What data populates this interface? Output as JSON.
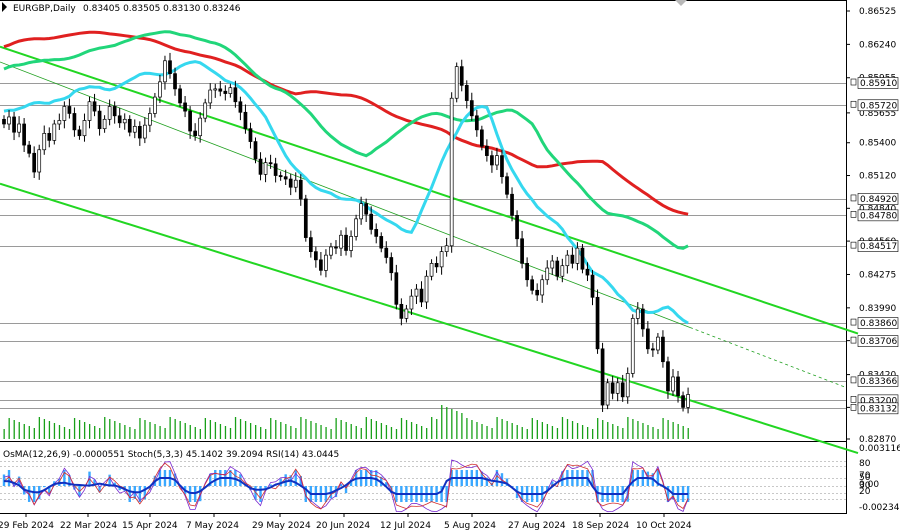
{
  "chart_data": {
    "type": "candlestick",
    "symbol": "EURGBP,Daily",
    "ohlc_header": "0.83405 0.83505 0.83130 0.83246",
    "price_ticks": [
      "0.86525",
      "0.86240",
      "0.85955",
      "0.85655",
      "0.85400",
      "0.85120",
      "0.84840",
      "0.84560",
      "0.84275",
      "0.83990",
      "0.83710",
      "0.83420",
      "0.83140",
      "0.82870"
    ],
    "level_labels": [
      {
        "text": "0.85910",
        "price": 0.8591
      },
      {
        "text": "0.85720",
        "price": 0.8572
      },
      {
        "text": "0.84920",
        "price": 0.8492
      },
      {
        "text": "0.84780",
        "price": 0.8478
      },
      {
        "text": "0.84517",
        "price": 0.84517
      },
      {
        "text": "0.83860",
        "price": 0.8386
      },
      {
        "text": "0.83706",
        "price": 0.83706
      },
      {
        "text": "0.83366",
        "price": 0.83366
      },
      {
        "text": "0.83200",
        "price": 0.832
      },
      {
        "text": "0.83132",
        "price": 0.83132
      }
    ],
    "date_ticks": [
      "29 Feb 2024",
      "22 Mar 2024",
      "15 Apr 2024",
      "7 May 2024",
      "29 May 2024",
      "20 Jun 2024",
      "12 Jul 2024",
      "5 Aug 2024",
      "27 Aug 2024",
      "18 Sep 2024",
      "10 Oct 2024"
    ],
    "closes": [
      0.8556,
      0.8562,
      0.8549,
      0.8556,
      0.8538,
      0.8531,
      0.8515,
      0.8534,
      0.8548,
      0.8542,
      0.8556,
      0.8559,
      0.8571,
      0.8565,
      0.8551,
      0.8546,
      0.8559,
      0.8575,
      0.8567,
      0.8552,
      0.856,
      0.8571,
      0.8563,
      0.8557,
      0.856,
      0.8549,
      0.8554,
      0.8544,
      0.8555,
      0.8565,
      0.8579,
      0.8592,
      0.861,
      0.8599,
      0.8586,
      0.8574,
      0.8567,
      0.855,
      0.8546,
      0.8561,
      0.8574,
      0.8585,
      0.8586,
      0.8584,
      0.8582,
      0.8587,
      0.8575,
      0.8566,
      0.8552,
      0.8541,
      0.8526,
      0.8513,
      0.8523,
      0.8522,
      0.8512,
      0.8511,
      0.8509,
      0.8502,
      0.8508,
      0.8492,
      0.8459,
      0.8447,
      0.844,
      0.8431,
      0.8444,
      0.8451,
      0.845,
      0.8461,
      0.8448,
      0.846,
      0.8475,
      0.8488,
      0.8479,
      0.8466,
      0.846,
      0.845,
      0.8442,
      0.8429,
      0.8402,
      0.839,
      0.8398,
      0.8409,
      0.8415,
      0.8404,
      0.8426,
      0.8437,
      0.8434,
      0.8447,
      0.8452,
      0.8578,
      0.8605,
      0.8589,
      0.8576,
      0.8563,
      0.8551,
      0.8537,
      0.8529,
      0.8521,
      0.8529,
      0.8511,
      0.8496,
      0.8478,
      0.8458,
      0.8437,
      0.8423,
      0.8414,
      0.841,
      0.8423,
      0.8433,
      0.8439,
      0.8426,
      0.8435,
      0.8444,
      0.8437,
      0.845,
      0.8432,
      0.8427,
      0.8408,
      0.8364,
      0.8316,
      0.8335,
      0.8326,
      0.8335,
      0.8323,
      0.8343,
      0.839,
      0.8398,
      0.8381,
      0.8364,
      0.8363,
      0.8374,
      0.8353,
      0.8328,
      0.834,
      0.8324,
      0.8314,
      0.8325
    ],
    "moving_averages": [
      {
        "color": "#e02020",
        "start": [
          0,
          0.8622
        ],
        "end": [
          134,
          0.8479
        ]
      },
      {
        "color": "#21d67a",
        "start": [
          0,
          0.8603
        ],
        "end": [
          134,
          0.8452
        ]
      },
      {
        "color": "#35d8ef",
        "start": [
          0,
          0.8567
        ],
        "end": [
          134,
          0.8386
        ]
      }
    ],
    "channel_lines": [
      {
        "color": "#22d622",
        "start_price": 0.8622,
        "end_price": 0.8377
      },
      {
        "color": "#22d622",
        "start_price": 0.8505,
        "end_price": 0.8275
      },
      {
        "color": "#20a020",
        "start_price": 0.8609,
        "end_price": 0.8331,
        "dashed_tail": true
      }
    ],
    "indicator_header": "OsMA(12,26,9) -0.0000551  Stoch(5,3,3) 45.1402 39.2094  RSI(14) 43.0445",
    "indicator_ticks": [
      "0.0031162",
      "80",
      "70",
      "50",
      "30",
      "20",
      "0.00",
      "-0.0023463"
    ]
  }
}
